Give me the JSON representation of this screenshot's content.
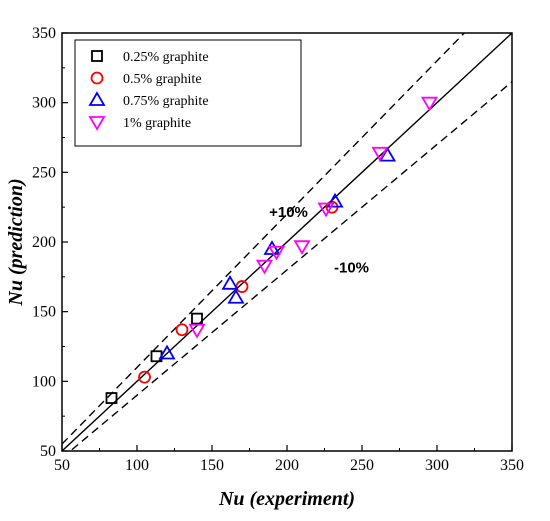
{
  "chart_data": {
    "type": "scatter",
    "title": "",
    "xlabel": "Nu (experiment)",
    "ylabel": "Nu (prediction)",
    "xlim": [
      50,
      350
    ],
    "ylim": [
      50,
      350
    ],
    "xticks": [
      50,
      100,
      150,
      200,
      250,
      300,
      350
    ],
    "yticks": [
      50,
      100,
      150,
      200,
      250,
      300,
      350
    ],
    "grid": false,
    "legend_position": "top-left",
    "series": [
      {
        "name": "0.25% graphite",
        "marker": "square",
        "color": "#000000",
        "points": [
          [
            83,
            88
          ],
          [
            113,
            118
          ],
          [
            140,
            145
          ]
        ]
      },
      {
        "name": "0.5% graphite",
        "marker": "circle",
        "color": "#ff0000",
        "points": [
          [
            105,
            103
          ],
          [
            130,
            137
          ],
          [
            170,
            168
          ],
          [
            230,
            225
          ]
        ]
      },
      {
        "name": "0.75% graphite",
        "marker": "triangle-up",
        "color": "#0000ff",
        "points": [
          [
            120,
            120
          ],
          [
            162,
            170
          ],
          [
            166,
            160
          ],
          [
            190,
            195
          ],
          [
            232,
            229
          ],
          [
            267,
            262
          ]
        ]
      },
      {
        "name": "1% graphite",
        "marker": "triangle-down",
        "color": "#ff00ff",
        "points": [
          [
            140,
            137
          ],
          [
            185,
            183
          ],
          [
            193,
            193
          ],
          [
            210,
            197
          ],
          [
            226,
            224
          ],
          [
            262,
            264
          ],
          [
            295,
            300
          ]
        ]
      }
    ],
    "reference_lines": [
      {
        "label": "",
        "slope": 1.0,
        "style": "solid"
      },
      {
        "label": "+10%",
        "slope": 1.1,
        "style": "dashed"
      },
      {
        "label": "-10%",
        "slope": 0.9,
        "style": "dashed"
      }
    ],
    "annotations": [
      {
        "text": "+10%",
        "x": 201,
        "y": 218
      },
      {
        "text": "-10%",
        "x": 243,
        "y": 178
      }
    ]
  }
}
